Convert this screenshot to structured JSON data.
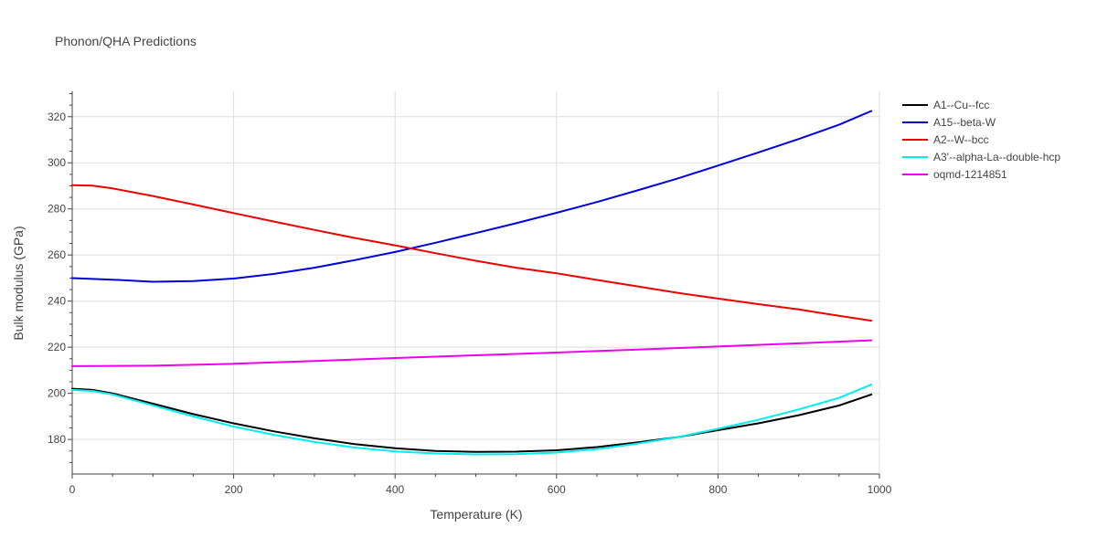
{
  "chart_data": {
    "type": "line",
    "title": "Phonon/QHA Predictions",
    "xlabel": "Temperature (K)",
    "ylabel": "Bulk modulus (GPa)",
    "xlim": [
      0,
      1000
    ],
    "ylim": [
      165,
      331
    ],
    "x_ticks": [
      0,
      200,
      400,
      600,
      800,
      1000
    ],
    "y_ticks": [
      180,
      200,
      220,
      240,
      260,
      280,
      300,
      320
    ],
    "grid": true,
    "legend_position": "top-right",
    "series": [
      {
        "name": "A1--Cu--fcc",
        "color": "#000000",
        "x": [
          0,
          25,
          50,
          100,
          150,
          200,
          250,
          300,
          350,
          400,
          450,
          500,
          550,
          600,
          650,
          700,
          750,
          800,
          850,
          900,
          950,
          990
        ],
        "y": [
          202,
          201.5,
          200,
          195.5,
          191,
          187,
          183.5,
          180.5,
          178,
          176.2,
          175,
          174.6,
          174.7,
          175.3,
          176.7,
          178.7,
          181,
          184,
          187,
          190.5,
          194.7,
          199.5
        ]
      },
      {
        "name": "A15--beta-W",
        "color": "#0000dd",
        "x": [
          0,
          50,
          100,
          150,
          200,
          250,
          300,
          350,
          400,
          450,
          500,
          550,
          600,
          650,
          700,
          750,
          800,
          850,
          900,
          950,
          990
        ],
        "y": [
          250,
          249.3,
          248.4,
          248.7,
          249.8,
          251.8,
          254.5,
          257.8,
          261.3,
          265.3,
          269.5,
          273.8,
          278.3,
          283,
          288,
          293.2,
          298.8,
          304.5,
          310.3,
          316.5,
          322.5
        ]
      },
      {
        "name": "A2--W--bcc",
        "color": "#ee0000",
        "x": [
          0,
          25,
          50,
          100,
          150,
          200,
          250,
          300,
          350,
          400,
          450,
          500,
          550,
          600,
          650,
          700,
          750,
          800,
          850,
          900,
          950,
          990
        ],
        "y": [
          290.3,
          290.1,
          288.9,
          285.6,
          281.9,
          278.2,
          274.5,
          270.9,
          267.4,
          264.2,
          260.8,
          257.5,
          254.5,
          252.1,
          249.2,
          246.4,
          243.6,
          241.1,
          238.7,
          236.4,
          233.6,
          231.5
        ]
      },
      {
        "name": "A3'--alpha-La--double-hcp",
        "color": "#00eeee",
        "x": [
          0,
          25,
          50,
          100,
          150,
          200,
          250,
          300,
          350,
          400,
          450,
          500,
          550,
          600,
          650,
          700,
          750,
          800,
          850,
          900,
          950,
          990
        ],
        "y": [
          201.5,
          201,
          199.5,
          194.8,
          190,
          185.6,
          182,
          178.9,
          176.5,
          174.8,
          173.9,
          173.5,
          173.6,
          174.3,
          175.8,
          178.2,
          181,
          184.6,
          188.5,
          193,
          198,
          203.8
        ]
      },
      {
        "name": "oqmd-1214851",
        "color": "#ee00ee",
        "x": [
          0,
          100,
          200,
          300,
          400,
          500,
          600,
          700,
          800,
          900,
          990
        ],
        "y": [
          211.8,
          212,
          212.8,
          214,
          215.3,
          216.5,
          217.7,
          219,
          220.3,
          221.7,
          223
        ]
      }
    ]
  }
}
